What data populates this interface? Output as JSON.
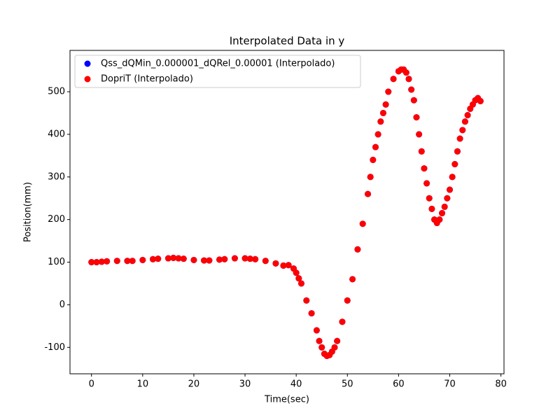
{
  "chart_data": {
    "type": "scatter",
    "title": "Interpolated Data in y",
    "x_label": "Time(sec)",
    "y_label": "Position(mm)",
    "x": [
      0,
      1,
      2,
      3,
      5,
      7,
      8,
      10,
      12,
      13,
      15,
      16,
      17,
      18,
      20,
      22,
      23,
      25,
      26,
      28,
      30,
      31,
      32,
      34,
      36,
      37.5,
      38.5,
      39.5,
      40,
      40.5,
      41,
      42,
      43,
      44,
      44.5,
      45,
      45.5,
      46,
      46.5,
      47,
      47.5,
      48,
      49,
      50,
      51,
      52,
      53,
      54,
      54.5,
      55,
      55.5,
      56,
      56.5,
      57,
      57.5,
      58,
      59,
      60,
      60.5,
      61,
      61.5,
      62,
      62.5,
      63,
      63.5,
      64,
      64.5,
      65,
      65.5,
      66,
      66.5,
      67,
      67.5,
      68,
      68.5,
      69,
      69.5,
      70,
      70.5,
      71,
      71.5,
      72,
      72.5,
      73,
      73.5,
      74,
      74.5,
      75,
      75.5,
      76
    ],
    "series": [
      {
        "name": "Qss_dQMin_0.000001_dQRel_0.00001 (Interpolado)",
        "color": "#0000ff",
        "values": [
          100,
          100,
          101,
          102,
          103,
          103,
          103,
          105,
          107,
          108,
          109,
          110,
          109,
          108,
          105,
          104,
          104,
          106,
          107,
          109,
          109,
          108,
          107,
          103,
          97,
          92,
          93,
          85,
          75,
          62,
          50,
          10,
          -20,
          -60,
          -85,
          -100,
          -115,
          -120,
          -118,
          -110,
          -100,
          -85,
          -40,
          10,
          60,
          130,
          190,
          260,
          300,
          340,
          370,
          400,
          430,
          450,
          470,
          500,
          530,
          548,
          552,
          552,
          545,
          530,
          505,
          480,
          440,
          400,
          360,
          320,
          285,
          250,
          225,
          200,
          192,
          200,
          215,
          230,
          250,
          270,
          300,
          330,
          360,
          390,
          410,
          430,
          445,
          460,
          470,
          480,
          485,
          478
        ]
      },
      {
        "name": "DopriT (Interpolado)",
        "color": "#ff0000",
        "values": [
          100,
          100,
          101,
          102,
          103,
          103,
          103,
          105,
          107,
          108,
          109,
          110,
          109,
          108,
          105,
          104,
          104,
          106,
          107,
          109,
          109,
          108,
          107,
          103,
          97,
          92,
          93,
          85,
          75,
          62,
          50,
          10,
          -20,
          -60,
          -85,
          -100,
          -115,
          -120,
          -118,
          -110,
          -100,
          -85,
          -40,
          10,
          60,
          130,
          190,
          260,
          300,
          340,
          370,
          400,
          430,
          450,
          470,
          500,
          530,
          548,
          552,
          552,
          545,
          530,
          505,
          480,
          440,
          400,
          360,
          320,
          285,
          250,
          225,
          200,
          192,
          200,
          215,
          230,
          250,
          270,
          300,
          330,
          360,
          390,
          410,
          430,
          445,
          460,
          470,
          480,
          485,
          478
        ]
      }
    ],
    "xlim": [
      -4.2,
      80.6
    ],
    "ylim": [
      -162,
      597
    ],
    "xticks": [
      0,
      10,
      20,
      30,
      40,
      50,
      60,
      70,
      80
    ],
    "yticks": [
      -100,
      0,
      100,
      200,
      300,
      400,
      500
    ],
    "grid": false,
    "legend": "upper left"
  }
}
